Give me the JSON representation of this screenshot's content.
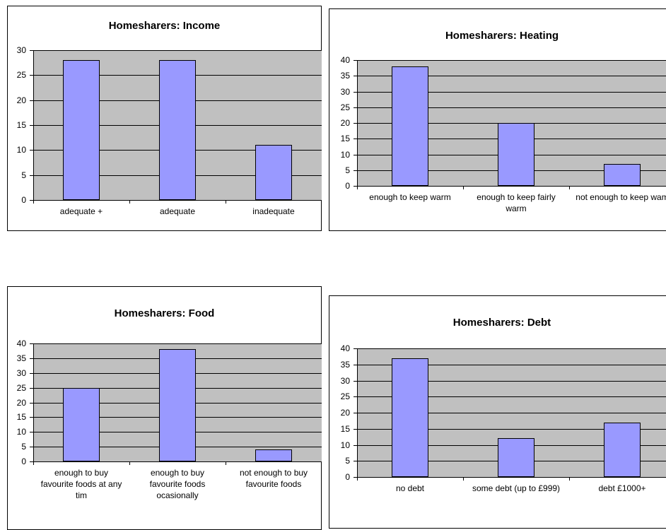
{
  "chart_data": [
    {
      "type": "bar",
      "title": "Homesharers: Income",
      "categories": [
        "adequate +",
        "adequate",
        "inadequate"
      ],
      "values": [
        28,
        28,
        11
      ],
      "color": "#9999ff",
      "ylim": [
        0,
        30
      ],
      "yticks": [
        0,
        5,
        10,
        15,
        20,
        25,
        30
      ],
      "grid": true
    },
    {
      "type": "bar",
      "title": "Homesharers: Heating",
      "categories": [
        "enough to keep warm",
        "enough to keep fairly warm",
        "not enough to keep wam"
      ],
      "values": [
        38,
        20,
        7
      ],
      "color": "#9999ff",
      "ylim": [
        0,
        40
      ],
      "yticks": [
        0,
        5,
        10,
        15,
        20,
        25,
        30,
        35,
        40
      ],
      "grid": true
    },
    {
      "type": "bar",
      "title": "Homesharers: Food",
      "categories": [
        "enough to buy favourite foods at any tim",
        "enough to buy favourite foods ocasionally",
        "not enough to buy favourite foods"
      ],
      "values": [
        25,
        38,
        4
      ],
      "color": "#9999ff",
      "ylim": [
        0,
        40
      ],
      "yticks": [
        0,
        5,
        10,
        15,
        20,
        25,
        30,
        35,
        40
      ],
      "grid": true
    },
    {
      "type": "bar",
      "title": "Homesharers: Debt",
      "categories": [
        "no debt",
        "some debt (up to £999)",
        "debt £1000+"
      ],
      "values": [
        37,
        12,
        17
      ],
      "color": "#9999ff",
      "ylim": [
        0,
        40
      ],
      "yticks": [
        0,
        5,
        10,
        15,
        20,
        25,
        30,
        35,
        40
      ],
      "grid": true
    }
  ]
}
